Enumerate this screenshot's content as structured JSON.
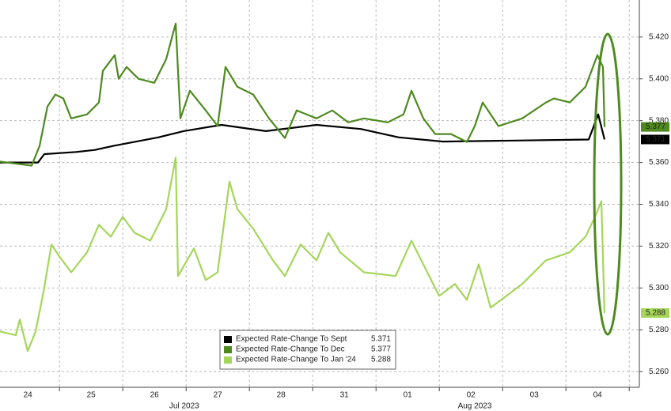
{
  "chart_data": {
    "type": "line",
    "xlim": [
      0,
      10.1
    ],
    "ylim": [
      5.2525,
      5.4377
    ],
    "xticks": [
      {
        "value": 0.44,
        "label": "24"
      },
      {
        "value": 1.44,
        "label": "25"
      },
      {
        "value": 2.44,
        "label": "26"
      },
      {
        "value": 3.44,
        "label": "27"
      },
      {
        "value": 4.44,
        "label": "28"
      },
      {
        "value": 5.44,
        "label": "31"
      },
      {
        "value": 6.44,
        "label": "01"
      },
      {
        "value": 7.44,
        "label": "02"
      },
      {
        "value": 8.44,
        "label": "03"
      },
      {
        "value": 9.44,
        "label": "04"
      }
    ],
    "x_period_labels": [
      {
        "value": 2.91,
        "label": "Jul 2023"
      },
      {
        "value": 7.5,
        "label": "Aug 2023"
      }
    ],
    "yticks": [
      {
        "value": 5.26,
        "label": "5.260"
      },
      {
        "value": 5.28,
        "label": "5.280"
      },
      {
        "value": 5.3,
        "label": "5.300"
      },
      {
        "value": 5.32,
        "label": "5.320"
      },
      {
        "value": 5.34,
        "label": "5.340"
      },
      {
        "value": 5.36,
        "label": "5.360"
      },
      {
        "value": 5.38,
        "label": "5.380"
      },
      {
        "value": 5.4,
        "label": "5.400"
      },
      {
        "value": 5.42,
        "label": "5.420"
      }
    ],
    "grid": true,
    "legend": "bottom-center",
    "series": [
      {
        "name": "Expected Rate-Change To Sept",
        "color": "#000000",
        "x": [
          0,
          0.6,
          0.7,
          1.2,
          1.5,
          1.8,
          2.5,
          2.9,
          3.5,
          4.2,
          5.0,
          5.7,
          6.3,
          7.0,
          9.3,
          9.45,
          9.55
        ],
        "values": [
          5.36,
          5.36,
          5.364,
          5.365,
          5.366,
          5.368,
          5.372,
          5.375,
          5.378,
          5.375,
          5.378,
          5.376,
          5.372,
          5.37,
          5.371,
          5.383,
          5.371
        ]
      },
      {
        "name": "Expected Rate-Change To Dec",
        "color": "#4e8a1e",
        "x": [
          0,
          0.5,
          0.625,
          0.75,
          0.875,
          1.0,
          1.125,
          1.375,
          1.5625,
          1.625,
          1.8125,
          1.875,
          2.0,
          2.1875,
          2.4375,
          2.625,
          2.775,
          2.85,
          3.0,
          3.25,
          3.4375,
          3.5625,
          3.75,
          4.0,
          4.25,
          4.5,
          4.6875,
          5.0,
          5.25,
          5.5,
          5.75,
          6.125,
          6.375,
          6.5,
          6.6875,
          6.875,
          7.125,
          7.375,
          7.5,
          7.625,
          7.875,
          8.25,
          8.625,
          8.75,
          9.0,
          9.25,
          9.4375,
          9.525,
          9.55
        ],
        "values": [
          5.3604,
          5.3585,
          5.3679,
          5.3868,
          5.3925,
          5.3906,
          5.3811,
          5.383,
          5.3887,
          5.4038,
          5.4113,
          5.4,
          5.4057,
          5.4,
          5.3981,
          5.4094,
          5.4264,
          5.3811,
          5.3943,
          5.3849,
          5.3774,
          5.4057,
          5.3962,
          5.3925,
          5.3811,
          5.3717,
          5.3849,
          5.3811,
          5.3849,
          5.3792,
          5.3811,
          5.3792,
          5.383,
          5.3943,
          5.3811,
          5.3736,
          5.3736,
          5.3698,
          5.3774,
          5.3887,
          5.3774,
          5.3811,
          5.3887,
          5.3906,
          5.3887,
          5.3962,
          5.4113,
          5.4057,
          5.377
        ]
      },
      {
        "name": "Expected Rate-Change To Jan '24",
        "color": "#a5d65a",
        "x": [
          0,
          0.25,
          0.3125,
          0.4375,
          0.5625,
          0.6875,
          0.8125,
          0.9375,
          1.125,
          1.375,
          1.5625,
          1.75,
          1.9375,
          2.125,
          2.375,
          2.625,
          2.775,
          2.8125,
          3.0625,
          3.25,
          3.4375,
          3.625,
          3.75,
          4.0,
          4.3125,
          4.5,
          4.75,
          5.0,
          5.1875,
          5.375,
          5.75,
          6.25,
          6.5,
          6.75,
          6.9375,
          7.1875,
          7.375,
          7.5625,
          7.75,
          8.0,
          8.25,
          8.625,
          9.0,
          9.25,
          9.4,
          9.5,
          9.55
        ],
        "values": [
          5.2792,
          5.2774,
          5.2849,
          5.2698,
          5.2792,
          5.2981,
          5.3208,
          5.3151,
          5.3075,
          5.317,
          5.3302,
          5.3245,
          5.334,
          5.3264,
          5.3226,
          5.3377,
          5.3623,
          5.3057,
          5.3189,
          5.3038,
          5.3075,
          5.3509,
          5.3377,
          5.3283,
          5.3132,
          5.3057,
          5.3208,
          5.3132,
          5.3264,
          5.317,
          5.3075,
          5.3057,
          5.3226,
          5.3075,
          5.2962,
          5.3019,
          5.2943,
          5.3113,
          5.2906,
          5.2962,
          5.3019,
          5.3132,
          5.317,
          5.3245,
          5.334,
          5.3415,
          5.288
        ]
      }
    ]
  }
}
